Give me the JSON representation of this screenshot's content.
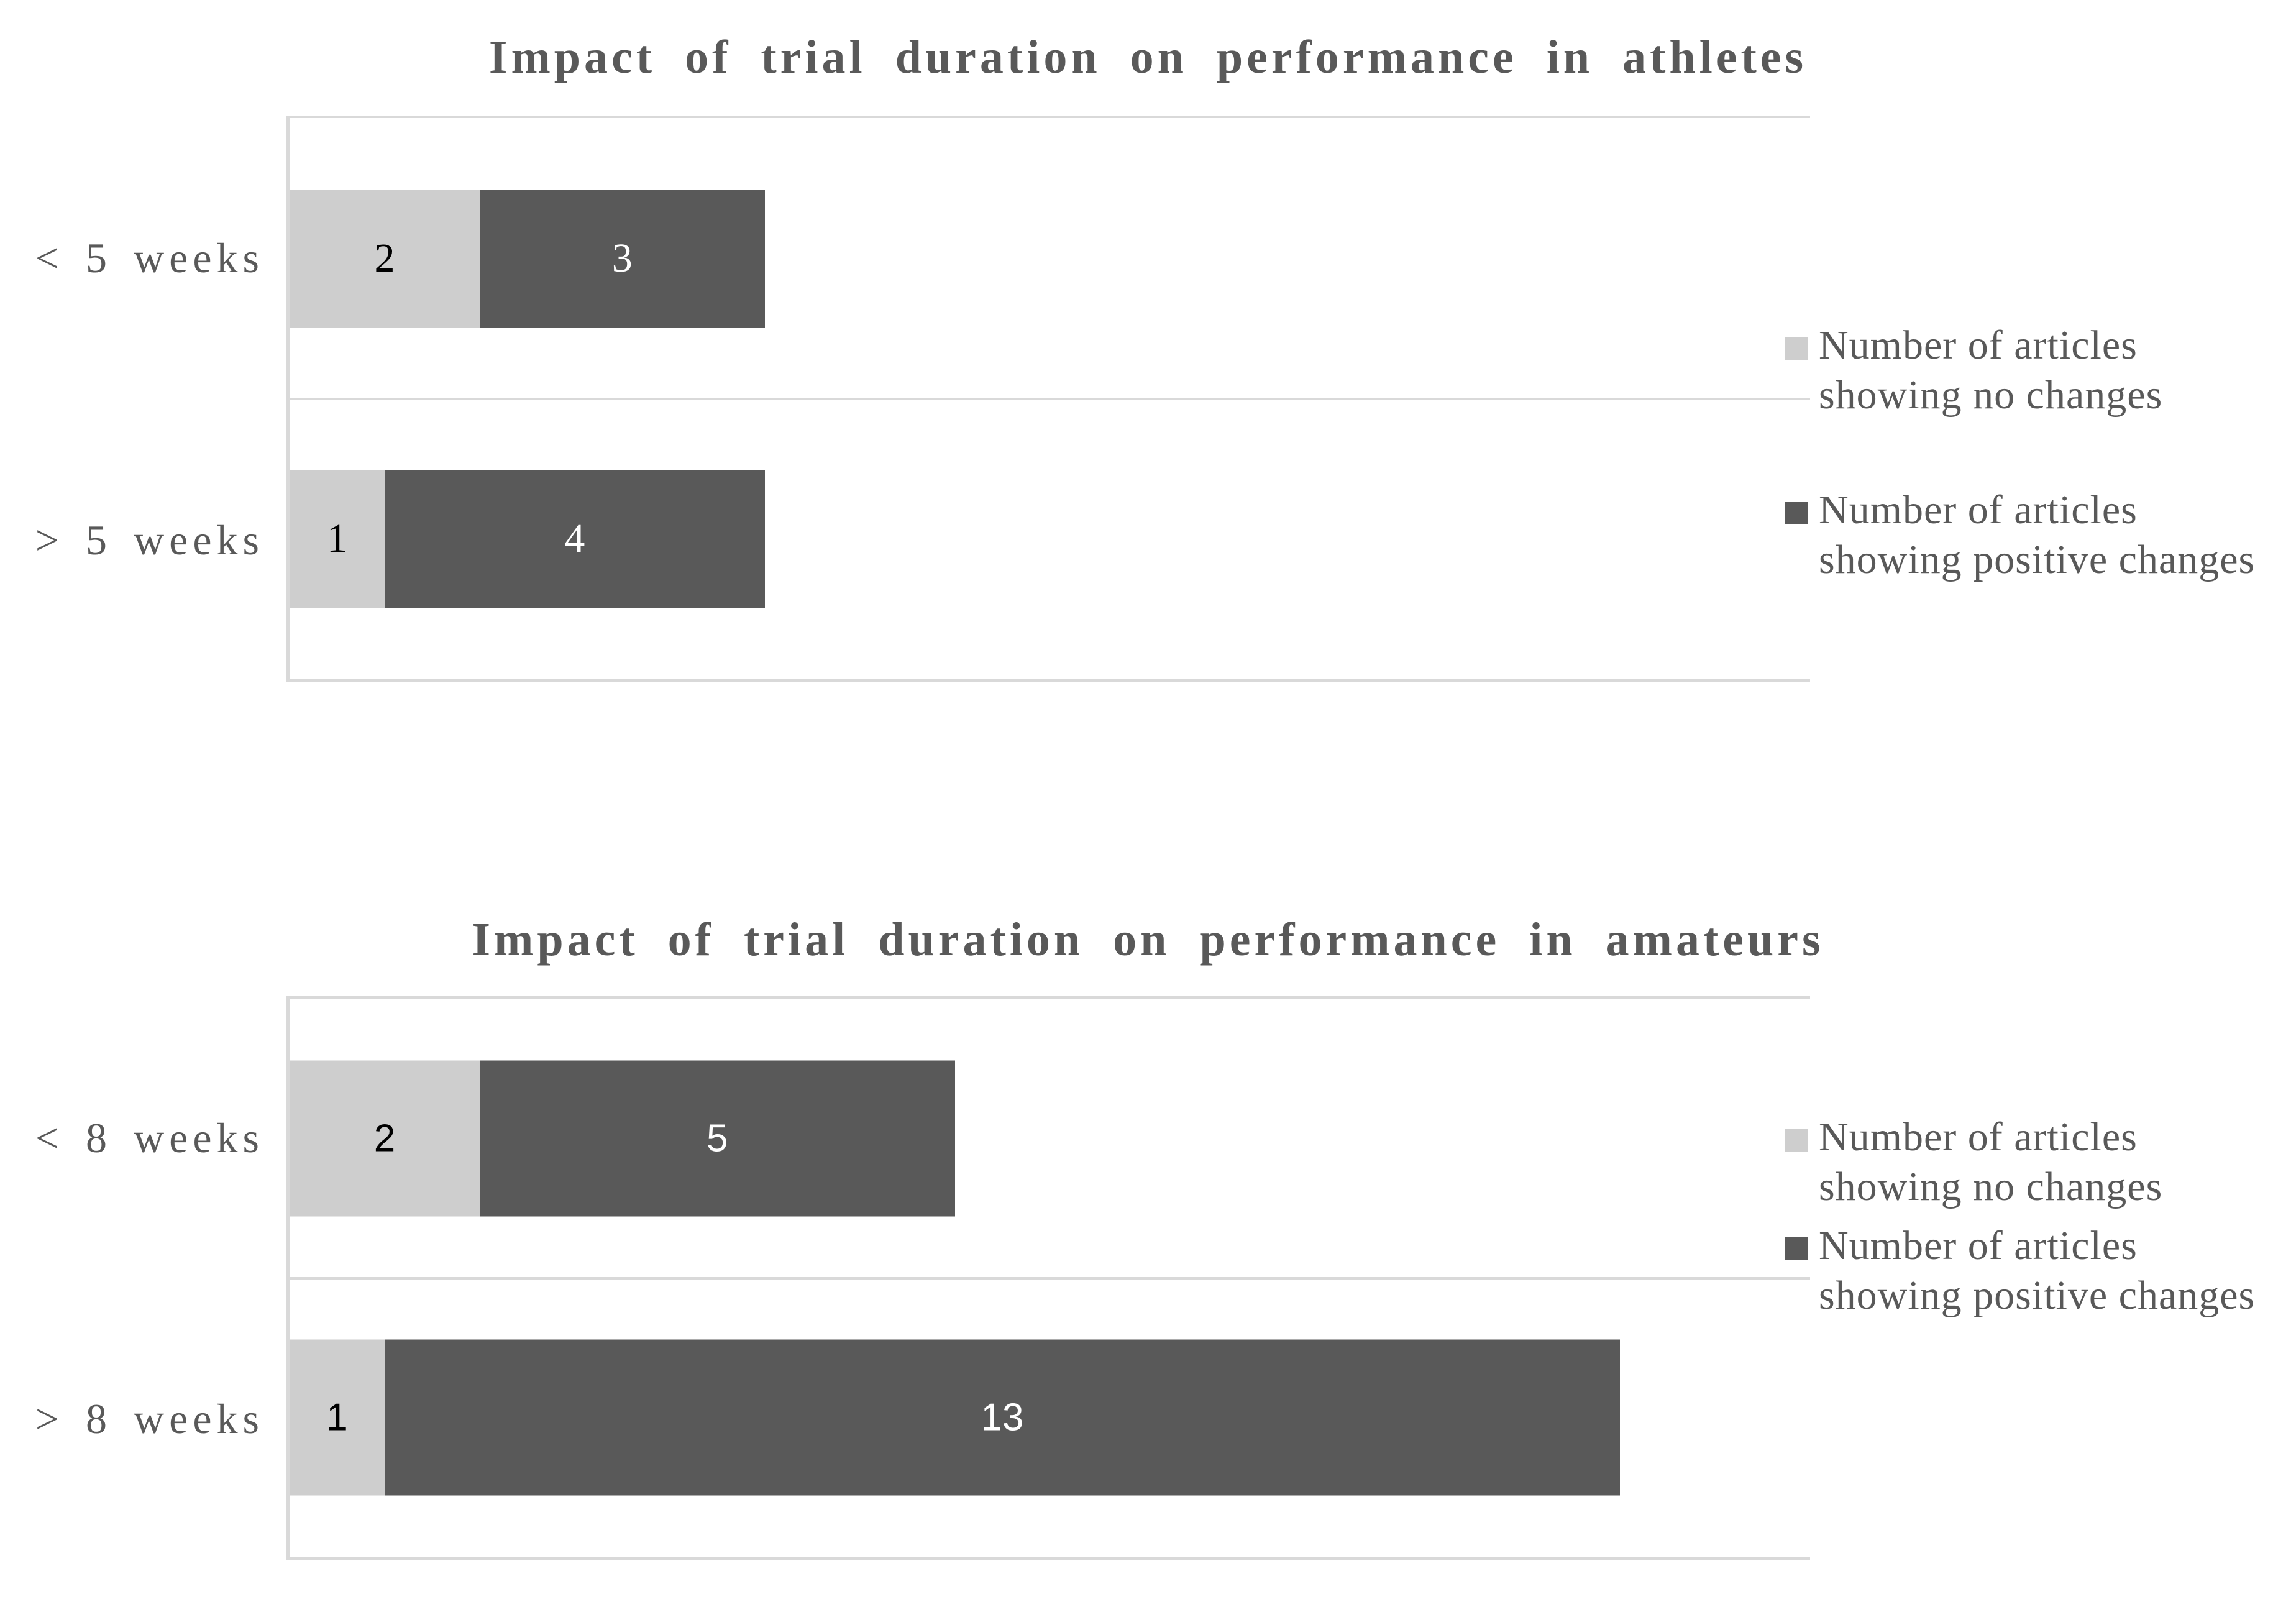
{
  "palette": {
    "background": "#ffffff",
    "title_text": "#595959",
    "category_text": "#595959",
    "legend_text": "#595959",
    "axis_and_border_lines": "#d9d9d9",
    "series_no_changes": "#cecece",
    "series_positive_changes": "#595959",
    "data_label_on_light": "#000000",
    "data_label_on_dark": "#ffffff"
  },
  "chart_data": [
    {
      "type": "bar",
      "orientation": "horizontal",
      "stacked": true,
      "title": "Impact of trial duration on performance in athletes",
      "categories": [
        "< 5 weeks",
        "> 5 weeks"
      ],
      "series": [
        {
          "name": "Number of articles showing no changes",
          "color": "#cecece",
          "values": [
            2,
            1
          ]
        },
        {
          "name": "Number of articles showing positive changes",
          "color": "#595959",
          "values": [
            3,
            4
          ]
        }
      ],
      "xlim": [
        0,
        16
      ],
      "x_axis_tick_labels_visible": false,
      "gridlines": "category-divider-only",
      "legend_position": "right",
      "legend_items": [
        {
          "lines": [
            "Number of articles",
            "showing no changes"
          ],
          "color": "#cecece"
        },
        {
          "lines": [
            "Number of articles",
            "showing positive changes"
          ],
          "color": "#595959"
        }
      ]
    },
    {
      "type": "bar",
      "orientation": "horizontal",
      "stacked": true,
      "title": "Impact of trial duration on performance in amateurs",
      "categories": [
        "< 8 weeks",
        "> 8 weeks"
      ],
      "series": [
        {
          "name": "Number of articles showing no changes",
          "color": "#cecece",
          "values": [
            2,
            1
          ]
        },
        {
          "name": "Number of articles showing positive changes",
          "color": "#595959",
          "values": [
            5,
            13
          ]
        }
      ],
      "xlim": [
        0,
        16
      ],
      "x_axis_tick_labels_visible": false,
      "gridlines": "category-divider-only",
      "legend_position": "right",
      "legend_items": [
        {
          "lines": [
            "Number of articles",
            "showing no changes"
          ],
          "color": "#cecece"
        },
        {
          "lines": [
            "Number of articles",
            "showing positive changes"
          ],
          "color": "#595959"
        }
      ]
    }
  ]
}
